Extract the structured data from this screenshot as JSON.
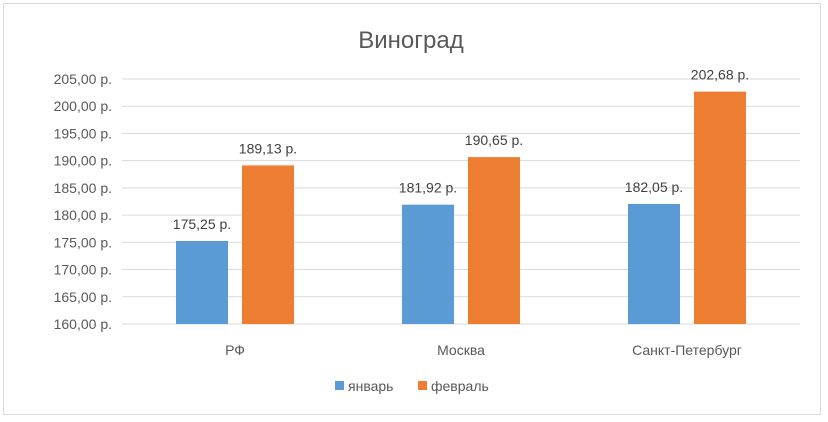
{
  "colors": {
    "january": "#5b9bd5",
    "february": "#ed7d31",
    "grid": "#d9d9d9",
    "text": "#595959"
  },
  "chart_data": {
    "type": "bar",
    "title": "Виноград",
    "categories": [
      "РФ",
      "Москва",
      "Санкт-Петербург"
    ],
    "series": [
      {
        "name": "январь",
        "values": [
          175.25,
          181.92,
          182.05
        ],
        "labels": [
          "175,25 р.",
          "181,92 р.",
          "182,05 р."
        ]
      },
      {
        "name": "февраль",
        "values": [
          189.13,
          190.65,
          202.68
        ],
        "labels": [
          "189,13 р.",
          "190,65 р.",
          "202,68 р."
        ]
      }
    ],
    "ylim": [
      160,
      205
    ],
    "yticks": [
      160,
      165,
      170,
      175,
      180,
      185,
      190,
      195,
      200,
      205
    ],
    "ytick_labels": [
      "160,00 р.",
      "165,00 р.",
      "170,00 р.",
      "175,00 р.",
      "180,00 р.",
      "185,00 р.",
      "190,00 р.",
      "195,00 р.",
      "200,00 р.",
      "205,00 р."
    ],
    "grid": true,
    "legend": "bottom"
  }
}
